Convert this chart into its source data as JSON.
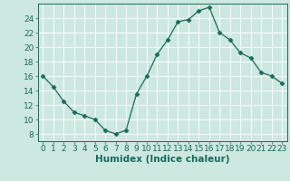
{
  "x": [
    0,
    1,
    2,
    3,
    4,
    5,
    6,
    7,
    8,
    9,
    10,
    11,
    12,
    13,
    14,
    15,
    16,
    17,
    18,
    19,
    20,
    21,
    22,
    23
  ],
  "y": [
    16,
    14.5,
    12.5,
    11,
    10.5,
    10,
    8.5,
    8,
    8.5,
    13.5,
    16,
    19,
    21,
    23.5,
    23.8,
    25,
    25.5,
    22,
    21,
    19.2,
    18.5,
    16.5,
    16,
    15
  ],
  "line_color": "#1a6b5a",
  "marker": "D",
  "marker_size": 2.5,
  "bg_color": "#cce8e0",
  "grid_color": "#ffffff",
  "xlabel": "Humidex (Indice chaleur)",
  "ylim": [
    7,
    26
  ],
  "xlim": [
    -0.5,
    23.5
  ],
  "yticks": [
    8,
    10,
    12,
    14,
    16,
    18,
    20,
    22,
    24
  ],
  "xticks": [
    0,
    1,
    2,
    3,
    4,
    5,
    6,
    7,
    8,
    9,
    10,
    11,
    12,
    13,
    14,
    15,
    16,
    17,
    18,
    19,
    20,
    21,
    22,
    23
  ],
  "xlabel_color": "#1a6b5a",
  "tick_color": "#1a6b5a",
  "font_size": 6.5,
  "label_font_size": 7.5
}
